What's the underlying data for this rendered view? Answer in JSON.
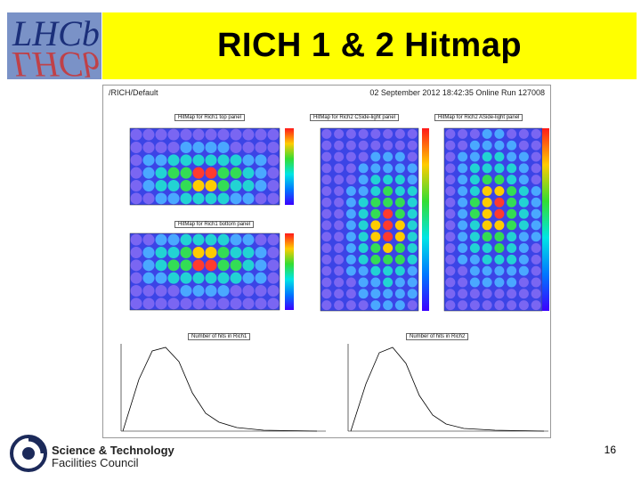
{
  "slide": {
    "title": "RICH 1 & 2 Hitmap",
    "page_number": "16"
  },
  "logo": {
    "text": "LHCb"
  },
  "canvas": {
    "path": "/RICH/Default",
    "run_info": "02 September 2012 18:42:35 Online Run 127008",
    "panels": {
      "rich1_top": "HitMap for Rich1 top panel",
      "rich1_bottom": "HitMap for Rich1 bottom panel",
      "rich2_cside": "HitMap for Rich2 CSide-light panel",
      "rich2_aside": "HitMap for Rich2 ASide-light panel",
      "nhits_rich1": "Number of hits in Rich1",
      "nhits_rich2": "Number of hits in Rich2"
    }
  },
  "footer": {
    "org_line1": "Science & Technology",
    "org_line2": "Facilities Council"
  },
  "colors": {
    "title_bg": "#ffff00",
    "hitmap_bg": "#3b44e6"
  }
}
